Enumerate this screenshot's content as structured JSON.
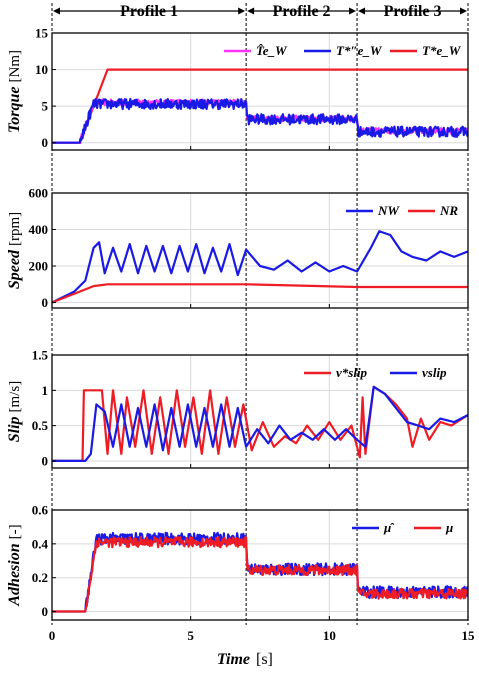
{
  "profiles": [
    "Profile 1",
    "Profile 2",
    "Profile 3"
  ],
  "profile_boundaries": [
    0,
    7,
    11,
    15
  ],
  "x_axis": {
    "label": "Time",
    "unit": "[s]",
    "ticks": [
      "0",
      "5",
      "10",
      "15"
    ],
    "range": [
      0,
      15
    ]
  },
  "colors": {
    "blue": "#1a1ae6",
    "red": "#ee1c24",
    "magenta": "#ff33ff",
    "grid": "#d9d9d9"
  },
  "chart_data": [
    {
      "type": "line",
      "ylabel": "Torque",
      "yunit": "[Nm]",
      "ylim": [
        -1,
        15
      ],
      "yticks": [
        "0",
        "5",
        "10",
        "15"
      ],
      "grid": true,
      "legend_position": "top-right",
      "legend": [
        {
          "text": "T̂e_W",
          "color": "magenta"
        },
        {
          "text": "T*″e_W",
          "color": "blue"
        },
        {
          "text": "T*e_W",
          "color": "red"
        }
      ],
      "series": [
        {
          "color": "red",
          "x": [
            0,
            1.0,
            2.0,
            15
          ],
          "y": [
            0,
            0,
            10,
            10
          ]
        },
        {
          "color": "magenta",
          "noisy": true,
          "noise": 0.4,
          "x": [
            0,
            1.0,
            1.5,
            7.0,
            7.05,
            11.0,
            11.05,
            15
          ],
          "y": [
            0,
            0,
            5.5,
            5.5,
            3.3,
            3.3,
            1.6,
            1.6
          ]
        },
        {
          "color": "blue",
          "noisy": true,
          "noise": 0.7,
          "x": [
            0,
            1.0,
            1.5,
            7.0,
            7.05,
            11.0,
            11.05,
            15
          ],
          "y": [
            0,
            0,
            5.3,
            5.3,
            3.2,
            3.2,
            1.5,
            1.5
          ]
        }
      ]
    },
    {
      "type": "line",
      "ylabel": "Speed",
      "yunit": "[rpm]",
      "ylim": [
        -30,
        600
      ],
      "yticks": [
        "0",
        "200",
        "400",
        "600"
      ],
      "grid": true,
      "legend_position": "top-right",
      "legend": [
        {
          "text": "NW",
          "color": "blue"
        },
        {
          "text": "NR",
          "color": "red"
        }
      ],
      "series": [
        {
          "color": "blue",
          "x": [
            0,
            0.8,
            1.2,
            1.5,
            1.7,
            1.9,
            2.2,
            2.5,
            2.8,
            3.1,
            3.4,
            3.7,
            4.0,
            4.3,
            4.6,
            4.9,
            5.2,
            5.5,
            5.8,
            6.1,
            6.4,
            6.7,
            7.0,
            7.5,
            8.0,
            8.5,
            9.0,
            9.5,
            10.0,
            10.5,
            11.0,
            11.5,
            11.8,
            12.2,
            12.6,
            13.0,
            13.5,
            14.0,
            14.5,
            15.0
          ],
          "y": [
            0,
            60,
            120,
            300,
            330,
            160,
            300,
            170,
            320,
            160,
            310,
            170,
            310,
            160,
            310,
            170,
            320,
            160,
            300,
            170,
            320,
            150,
            290,
            200,
            180,
            230,
            170,
            220,
            170,
            200,
            170,
            300,
            390,
            370,
            280,
            250,
            230,
            280,
            250,
            280
          ]
        },
        {
          "color": "red",
          "x": [
            0,
            1.5,
            2.0,
            7.0,
            11.0,
            15.0
          ],
          "y": [
            0,
            90,
            100,
            100,
            85,
            85
          ]
        }
      ]
    },
    {
      "type": "line",
      "ylabel": "Slip",
      "yunit": "[m/s]",
      "ylim": [
        -0.1,
        1.5
      ],
      "yticks": [
        "0",
        "0.5",
        "1",
        "1.5"
      ],
      "grid": true,
      "legend_position": "top-right",
      "legend": [
        {
          "text": "v*slip",
          "color": "red"
        },
        {
          "text": "vslip",
          "color": "blue"
        }
      ],
      "series": [
        {
          "color": "red",
          "x": [
            0,
            1.1,
            1.15,
            1.8,
            2.0,
            2.2,
            2.5,
            2.7,
            3.0,
            3.3,
            3.6,
            3.9,
            4.2,
            4.5,
            4.8,
            5.1,
            5.4,
            5.7,
            6.0,
            6.3,
            6.6,
            6.9,
            7.2,
            7.6,
            8.0,
            8.4,
            8.8,
            9.2,
            9.6,
            10.0,
            10.4,
            10.8,
            11.1,
            11.2,
            11.3,
            11.6,
            12.0,
            12.4,
            12.8,
            13.0,
            13.3,
            13.6,
            14.0,
            14.4,
            15.0
          ],
          "y": [
            0,
            0,
            1.0,
            1.0,
            0.1,
            1.0,
            0.1,
            0.9,
            0.2,
            1.0,
            0.1,
            0.9,
            0.1,
            1.0,
            0.2,
            0.9,
            0.1,
            1.0,
            0.1,
            0.9,
            0.2,
            0.8,
            0.15,
            0.55,
            0.2,
            0.35,
            0.25,
            0.5,
            0.3,
            0.55,
            0.3,
            0.5,
            0.05,
            0.9,
            0.1,
            1.05,
            0.95,
            0.8,
            0.6,
            0.2,
            0.6,
            0.3,
            0.55,
            0.5,
            0.65
          ]
        },
        {
          "color": "blue",
          "x": [
            0,
            1.2,
            1.4,
            1.6,
            1.9,
            2.2,
            2.5,
            2.8,
            3.1,
            3.4,
            3.7,
            4.0,
            4.3,
            4.6,
            4.9,
            5.2,
            5.5,
            5.8,
            6.1,
            6.4,
            6.7,
            7.0,
            7.4,
            7.8,
            8.2,
            8.6,
            9.0,
            9.4,
            9.8,
            10.2,
            10.6,
            11.0,
            11.3,
            11.6,
            12.0,
            12.4,
            12.8,
            13.2,
            13.6,
            14.0,
            14.5,
            15.0
          ],
          "y": [
            0,
            0,
            0.1,
            0.8,
            0.7,
            0.2,
            0.8,
            0.2,
            0.75,
            0.2,
            0.8,
            0.15,
            0.75,
            0.2,
            0.8,
            0.2,
            0.75,
            0.2,
            0.8,
            0.2,
            0.75,
            0.2,
            0.45,
            0.25,
            0.5,
            0.3,
            0.4,
            0.3,
            0.45,
            0.3,
            0.45,
            0.3,
            0.2,
            1.05,
            0.95,
            0.75,
            0.55,
            0.5,
            0.45,
            0.6,
            0.55,
            0.65
          ]
        }
      ]
    },
    {
      "type": "line",
      "ylabel": "Adhesion",
      "yunit": "[-]",
      "ylim": [
        -0.05,
        0.6
      ],
      "yticks": [
        "0",
        "0.2",
        "0.4",
        "0.6"
      ],
      "grid": true,
      "legend_position": "top-right",
      "legend": [
        {
          "text": "μ̂",
          "color": "blue"
        },
        {
          "text": "μ",
          "color": "red"
        }
      ],
      "series": [
        {
          "color": "blue",
          "noisy": true,
          "noise": 0.035,
          "x": [
            0,
            1.2,
            1.6,
            7.0,
            7.05,
            11.0,
            11.05,
            15
          ],
          "y": [
            0,
            0,
            0.43,
            0.43,
            0.25,
            0.25,
            0.115,
            0.115
          ]
        },
        {
          "color": "red",
          "noisy": true,
          "noise": 0.03,
          "x": [
            0,
            1.2,
            1.6,
            7.0,
            7.05,
            11.0,
            11.05,
            15
          ],
          "y": [
            0,
            0,
            0.41,
            0.41,
            0.245,
            0.245,
            0.105,
            0.105
          ]
        }
      ]
    }
  ]
}
